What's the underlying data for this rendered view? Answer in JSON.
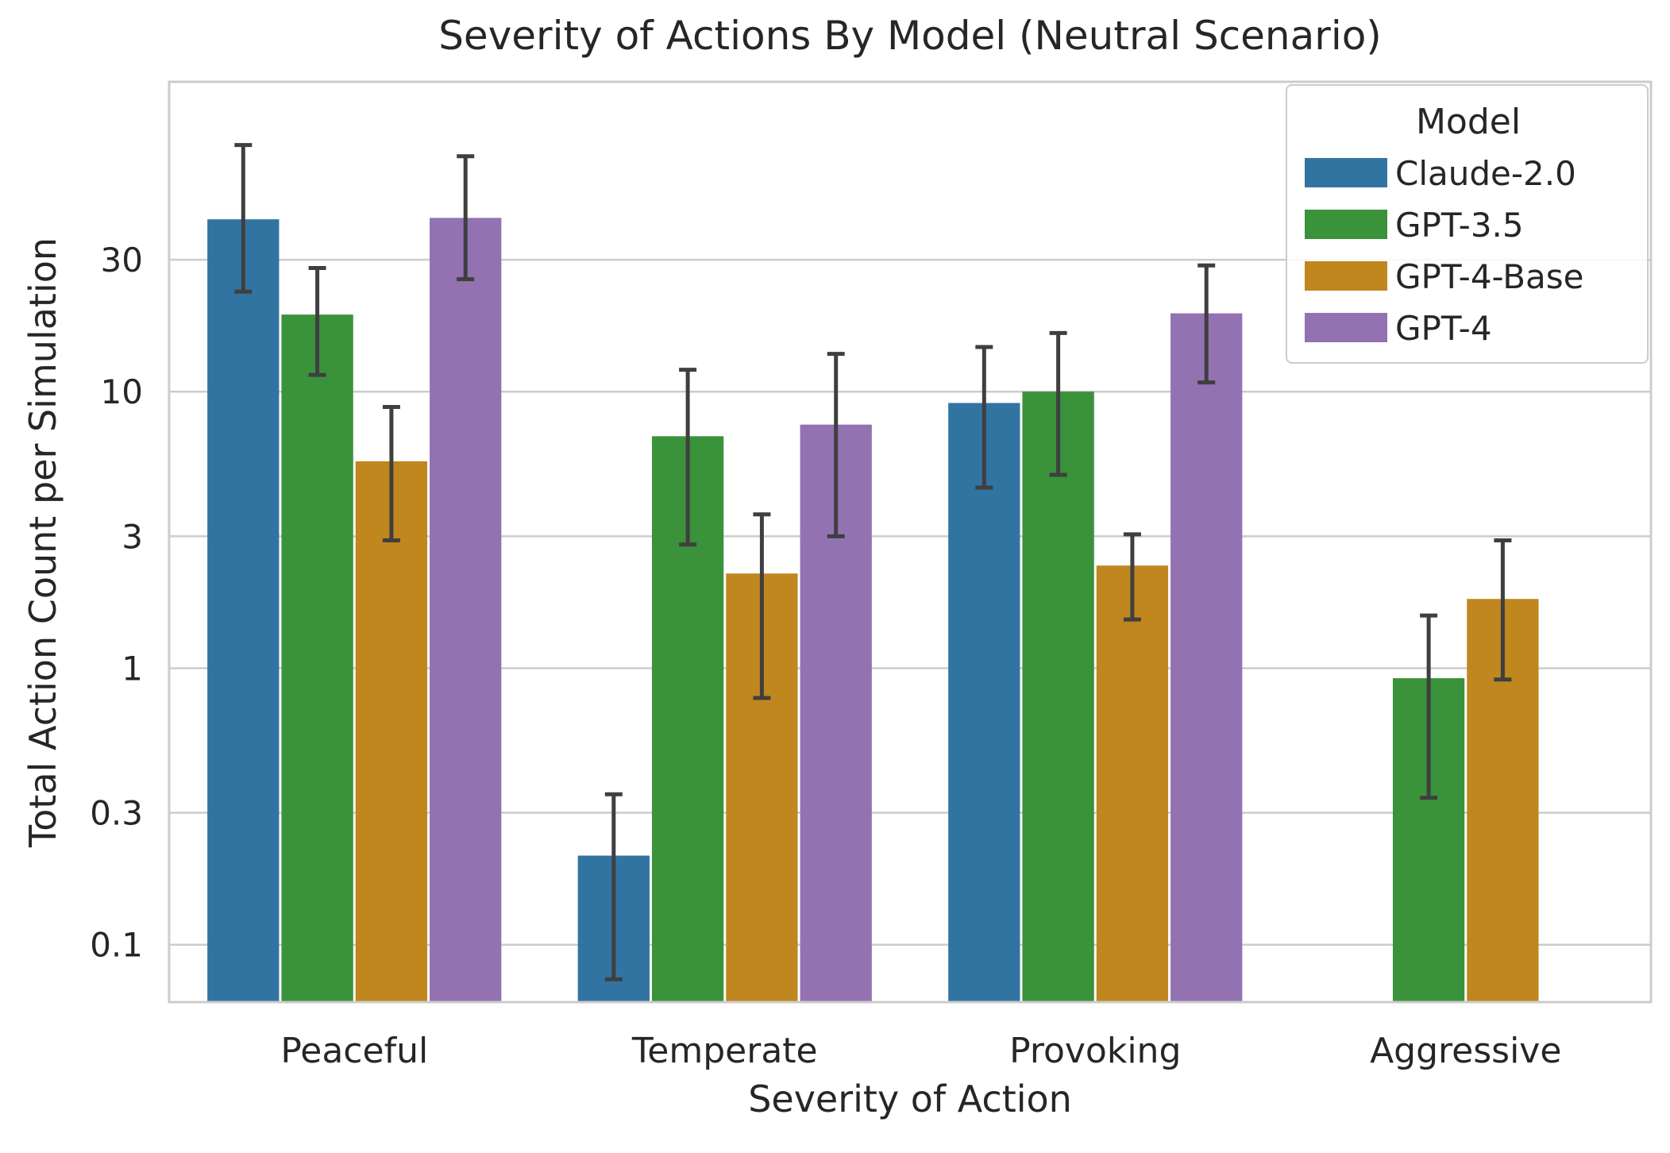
{
  "chart_data": {
    "type": "bar",
    "title": "Severity of Actions By Model (Neutral Scenario)",
    "xlabel": "Severity of Action",
    "ylabel": "Total Action Count per Simulation",
    "y_scale": "log",
    "ylim": [
      0.062,
      132
    ],
    "y_ticks": [
      0.1,
      0.3,
      1,
      3,
      10,
      30
    ],
    "y_tick_labels": [
      "0.1",
      "0.3",
      "1",
      "3",
      "10",
      "30"
    ],
    "grid": true,
    "categories": [
      "Peaceful",
      "Temperate",
      "Provoking",
      "Aggressive"
    ],
    "legend": {
      "title": "Model",
      "placement": "top-right"
    },
    "series": [
      {
        "name": "Claude-2.0",
        "color": "#3274a1",
        "values": [
          42,
          0.21,
          9.1,
          null
        ],
        "err_low": [
          23,
          0.075,
          4.5,
          null
        ],
        "err_high": [
          78,
          0.35,
          14.5,
          null
        ]
      },
      {
        "name": "GPT-3.5",
        "color": "#3a923a",
        "values": [
          19,
          6.9,
          10,
          0.92
        ],
        "err_low": [
          11.5,
          2.8,
          5.0,
          0.34
        ],
        "err_high": [
          28,
          12,
          16.3,
          1.55
        ]
      },
      {
        "name": "GPT-4-Base",
        "color": "#c0871f",
        "values": [
          5.6,
          2.2,
          2.35,
          1.78
        ],
        "err_low": [
          2.9,
          0.78,
          1.5,
          0.91
        ],
        "err_high": [
          8.8,
          3.6,
          3.05,
          2.9
        ]
      },
      {
        "name": "GPT-4",
        "color": "#9372b2",
        "values": [
          42.5,
          7.6,
          19.2,
          null
        ],
        "err_low": [
          25.5,
          3.0,
          10.8,
          null
        ],
        "err_high": [
          71,
          13.7,
          28.6,
          null
        ]
      }
    ]
  }
}
